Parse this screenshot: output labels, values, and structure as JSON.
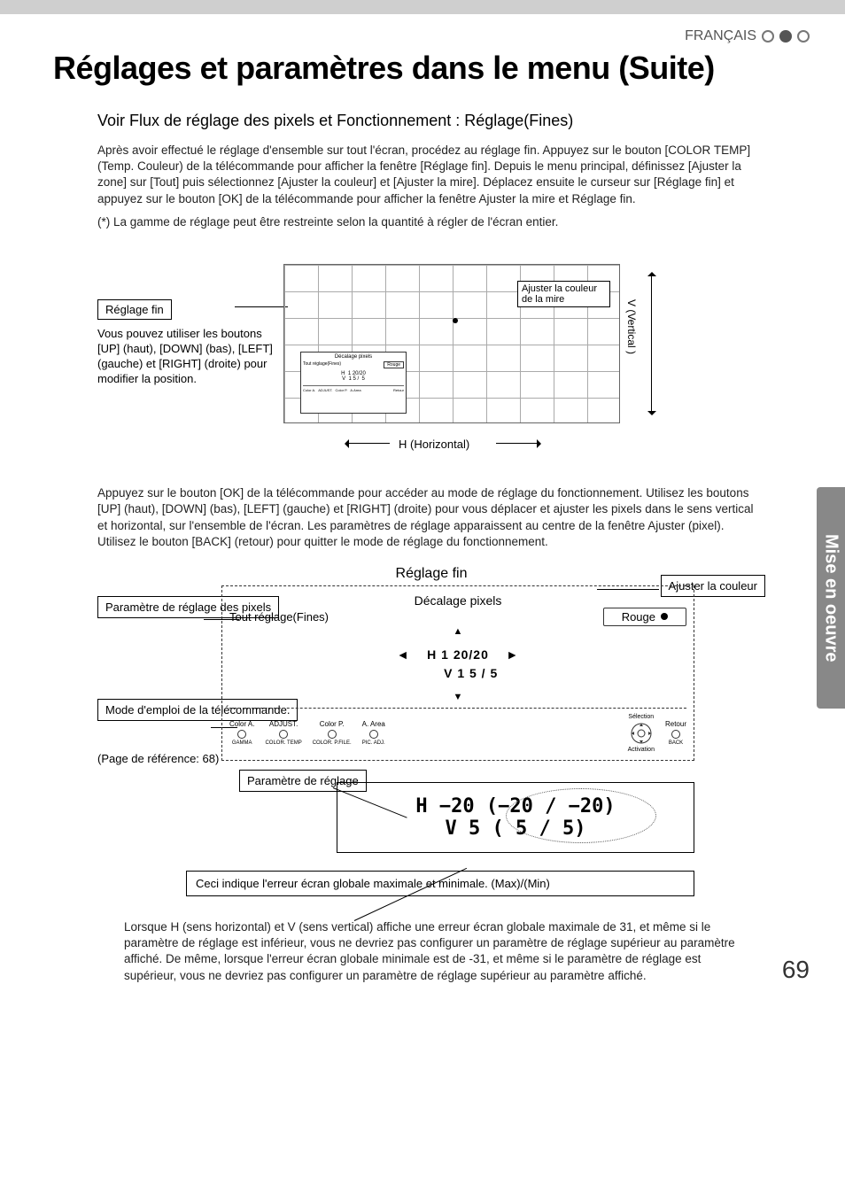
{
  "header": {
    "lang": "FRANÇAIS"
  },
  "title": "Réglages et paramètres dans le menu (Suite)",
  "subtitle": "Voir Flux de réglage des pixels et Fonctionnement : Réglage(Fines)",
  "intro": "Après avoir effectué le réglage d'ensemble sur tout l'écran, procédez au réglage fin. Appuyez sur le bouton [COLOR TEMP] (Temp. Couleur) de la télécommande pour afficher la fenêtre [Réglage fin]. Depuis le menu principal, définissez [Ajuster la zone] sur [Tout] puis sélectionnez [Ajuster la couleur] et [Ajuster la mire]. Déplacez ensuite le curseur sur [Réglage fin] et appuyez sur le bouton [OK] de la télécommande pour afficher la fenêtre Ajuster la mire et Réglage fin.",
  "intro_note": "(*) La gamme de réglage peut être restreinte selon la quantité à régler de l'écran entier.",
  "fig1": {
    "boxlabel": "Réglage fin",
    "callout": "Vous pouvez utiliser les boutons [UP] (haut), [DOWN] (bas), [LEFT] (gauche) et [RIGHT] (droite) pour modifier la position.",
    "target_label": "Ajuster la couleur de la mire",
    "h_axis": "H (Horizontal)",
    "v_axis": "V (Vertical )",
    "tiny_title": "Décalage pixels",
    "tiny_mode": "Tout réglage(Fines)",
    "tiny_color": "Rouge",
    "tiny_vals": "H  1 20/20\nV  1 5 /  5"
  },
  "mid_para": "Appuyez sur le bouton [OK] de la télécommande pour accéder au mode de réglage du fonctionnement. Utilisez les boutons [UP] (haut), [DOWN] (bas), [LEFT] (gauche) et [RIGHT] (droite) pour vous déplacer et ajuster les pixels dans le sens vertical et horizontal, sur l'ensemble de l'écran. Les paramètres de réglage apparaissent au centre de la fenêtre Ajuster (pixel). Utilisez le bouton [BACK] (retour) pour quitter le mode de réglage du fonctionnement.",
  "fig2": {
    "title": "Réglage fin",
    "box_title": "Décalage pixels",
    "left_mode": "Tout réglage(Fines)",
    "right_select": "Rouge",
    "center_h": "H    1 20/20",
    "center_v": "V    1  5 /  5",
    "callout_pixels": "Paramètre de réglage des pixels",
    "callout_color": "Ajuster la couleur",
    "callout_remote": "Mode d'emploi de la télécommande.",
    "ref_page": "(Page de référence: 68)",
    "callout_param": "Paramètre de réglage",
    "sel_label": "Sélection",
    "act_label": "Activation",
    "back_label": "Retour",
    "back_key": "BACK",
    "keys": [
      {
        "top": "Color A.",
        "bot": "GAMMA"
      },
      {
        "top": "ADJUST.",
        "bot": "COLOR. TEMP"
      },
      {
        "top": "Color P.",
        "bot": "COLOR. P.FILE."
      },
      {
        "top": "A. Area",
        "bot": "PIC. ADJ."
      }
    ]
  },
  "fig3": {
    "h_line": "H  −20  (−20  /  −20)",
    "v_line": "V     5  (    5  /      5)",
    "note": "Ceci indique l'erreur écran globale maximale et minimale. (Max)/(Min)"
  },
  "footer": "Lorsque H (sens horizontal) et V (sens vertical) affiche une erreur écran globale maximale de 31, et même si le paramètre de réglage est inférieur, vous ne devriez pas configurer un paramètre de réglage supérieur au paramètre affiché. De même, lorsque l'erreur écran globale minimale est de -31, et même si le paramètre de réglage est supérieur, vous ne devriez pas configurer un paramètre de réglage supérieur au paramètre affiché.",
  "side_tab": "Mise en oeuvre",
  "page_number": "69"
}
